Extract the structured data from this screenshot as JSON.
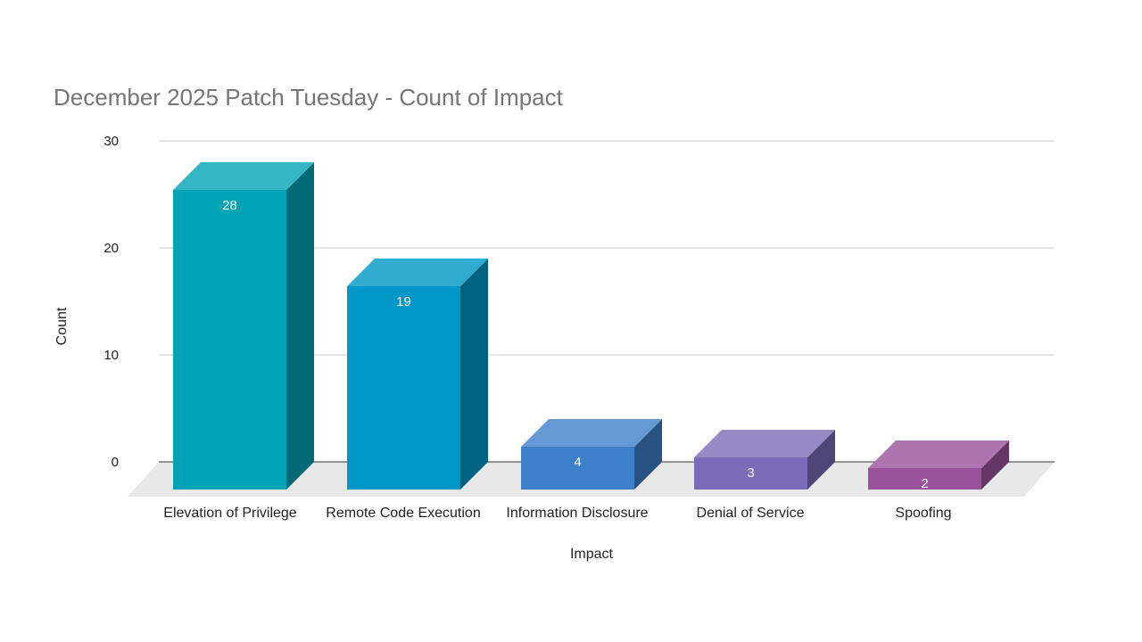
{
  "chart_data": {
    "type": "bar",
    "style": "3d",
    "title": "December 2025 Patch Tuesday - Count of Impact",
    "xlabel": "Impact",
    "ylabel": "Count",
    "categories": [
      "Elevation of Privilege",
      "Remote Code Execution",
      "Information Disclosure",
      "Denial of Service",
      "Spoofing"
    ],
    "values": [
      28,
      19,
      4,
      3,
      2
    ],
    "ylim": [
      0,
      30
    ],
    "yticks": [
      "0",
      "10",
      "20",
      "30"
    ],
    "grid": true,
    "legend": "none",
    "colors": [
      "#00a2b5",
      "#0097c6",
      "#3d7fc8",
      "#7a6cb8",
      "#9a519c"
    ]
  }
}
